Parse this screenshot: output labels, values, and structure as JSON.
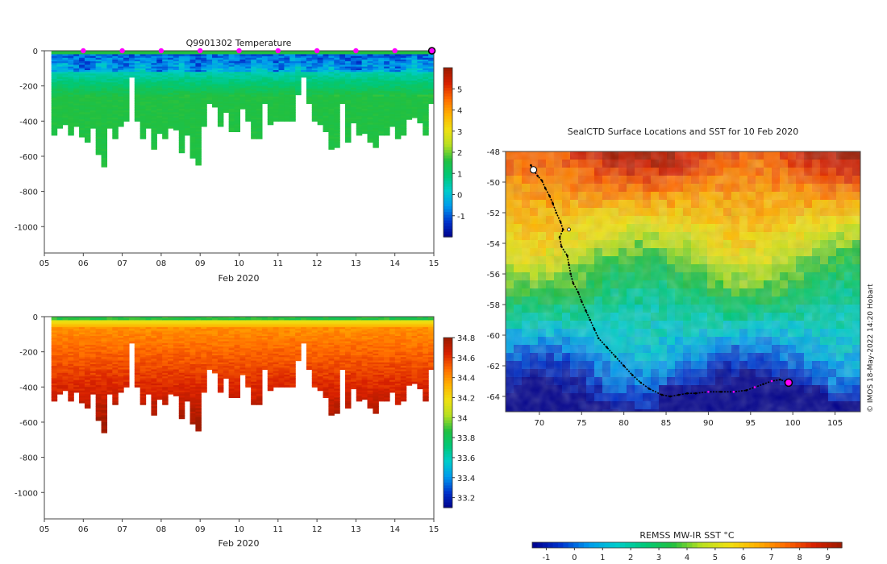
{
  "colors": {
    "temp_scale": [
      "#00008b",
      "#0033cc",
      "#0099ee",
      "#00cccc",
      "#00c878",
      "#22c040",
      "#b8e020",
      "#f0e010",
      "#ffb000",
      "#ff6a00",
      "#d82000",
      "#9b1a00"
    ],
    "marker": "#ff00ff",
    "track": "#000000"
  },
  "chart_data": [
    {
      "type": "heatmap",
      "name": "temperature_section",
      "title": "Q9901302  Temperature",
      "xlabel": "Feb 2020",
      "ylabel": "",
      "xlim": [
        5,
        15
      ],
      "ylim": [
        -1150,
        0
      ],
      "x_ticks": [
        "05",
        "06",
        "07",
        "08",
        "09",
        "10",
        "11",
        "12",
        "13",
        "14",
        "15"
      ],
      "y_ticks": [
        0,
        -200,
        -400,
        -600,
        -800,
        -1000
      ],
      "colorbar": {
        "min": -2,
        "max": 6,
        "ticks": [
          -1,
          0,
          1,
          2,
          3,
          4,
          5
        ]
      },
      "profile_start_day": [
        5.18,
        15.0
      ],
      "profile_max_depth_m": [
        480,
        440,
        420,
        480,
        430,
        490,
        520,
        440,
        590,
        660,
        440,
        500,
        430,
        400,
        150,
        400,
        500,
        440,
        560,
        470,
        500,
        440,
        450,
        580,
        480,
        610,
        650,
        430,
        300,
        320,
        430,
        350,
        460,
        460,
        330,
        400,
        500,
        500,
        300,
        420,
        400,
        400,
        400,
        400,
        250,
        150,
        300,
        400,
        420,
        460,
        560,
        550,
        300,
        520,
        410,
        480,
        470,
        520,
        550,
        480,
        480,
        430,
        500,
        480,
        390,
        380,
        410,
        480,
        300
      ],
      "markers_day": [
        6,
        7,
        8,
        9,
        10,
        11,
        12,
        13,
        14
      ],
      "current_day": 14.95
    },
    {
      "type": "heatmap",
      "name": "salinity_section",
      "title": "",
      "xlabel": "Feb 2020",
      "ylabel": "",
      "xlim": [
        5,
        15
      ],
      "ylim": [
        -1150,
        0
      ],
      "x_ticks": [
        "05",
        "06",
        "07",
        "08",
        "09",
        "10",
        "11",
        "12",
        "13",
        "14",
        "15"
      ],
      "y_ticks": [
        0,
        -200,
        -400,
        -600,
        -800,
        -1000
      ],
      "colorbar": {
        "min": 33.1,
        "max": 34.8,
        "ticks": [
          33.2,
          33.4,
          33.6,
          33.8,
          34,
          34.2,
          34.4,
          34.6,
          34.8
        ]
      }
    },
    {
      "type": "heatmap",
      "name": "sst_map",
      "title": "SealCTD Surface Locations and SST for 10 Feb 2020",
      "xlabel": "",
      "ylabel": "",
      "xlim": [
        66,
        108
      ],
      "ylim": [
        -65,
        -48
      ],
      "x_ticks": [
        70,
        75,
        80,
        85,
        90,
        95,
        100,
        105
      ],
      "y_ticks": [
        -48,
        -50,
        -52,
        -54,
        -56,
        -58,
        -60,
        -62,
        -64
      ],
      "track_lon": [
        69.0,
        69.4,
        69.8,
        70.3,
        70.7,
        71.2,
        71.6,
        72.0,
        72.5,
        72.8,
        72.4,
        72.6,
        73.3,
        73.5,
        73.7,
        74.0,
        74.6,
        75.0,
        75.5,
        76.0,
        76.5,
        77.0,
        78.0,
        79.0,
        80.0,
        81.0,
        82.0,
        83.0,
        84.5,
        85.5,
        86.5,
        87.5,
        88.5,
        90.0,
        91.5,
        93.0,
        94.5,
        95.5,
        96.5,
        97.5,
        98.5,
        99.5
      ],
      "track_lat": [
        -48.9,
        -49.3,
        -49.6,
        -49.9,
        -50.4,
        -50.9,
        -51.4,
        -52.0,
        -52.6,
        -53.1,
        -53.6,
        -54.2,
        -54.8,
        -55.4,
        -56.0,
        -56.6,
        -57.2,
        -57.8,
        -58.4,
        -59.0,
        -59.6,
        -60.2,
        -60.8,
        -61.4,
        -62.0,
        -62.6,
        -63.1,
        -63.5,
        -63.9,
        -64.0,
        -63.9,
        -63.8,
        -63.8,
        -63.7,
        -63.7,
        -63.7,
        -63.6,
        -63.4,
        -63.2,
        -63.0,
        -62.9,
        -63.1
      ],
      "current_position": [
        99.5,
        -63.1
      ],
      "colorbar": {
        "label": "REMSS MW-IR SST °C",
        "min": -1.5,
        "max": 9.5,
        "ticks": [
          -1,
          0,
          1,
          2,
          3,
          4,
          5,
          6,
          7,
          8,
          9
        ]
      },
      "credit": "© IMOS 18-May-2022 14:20 Hobart"
    }
  ]
}
